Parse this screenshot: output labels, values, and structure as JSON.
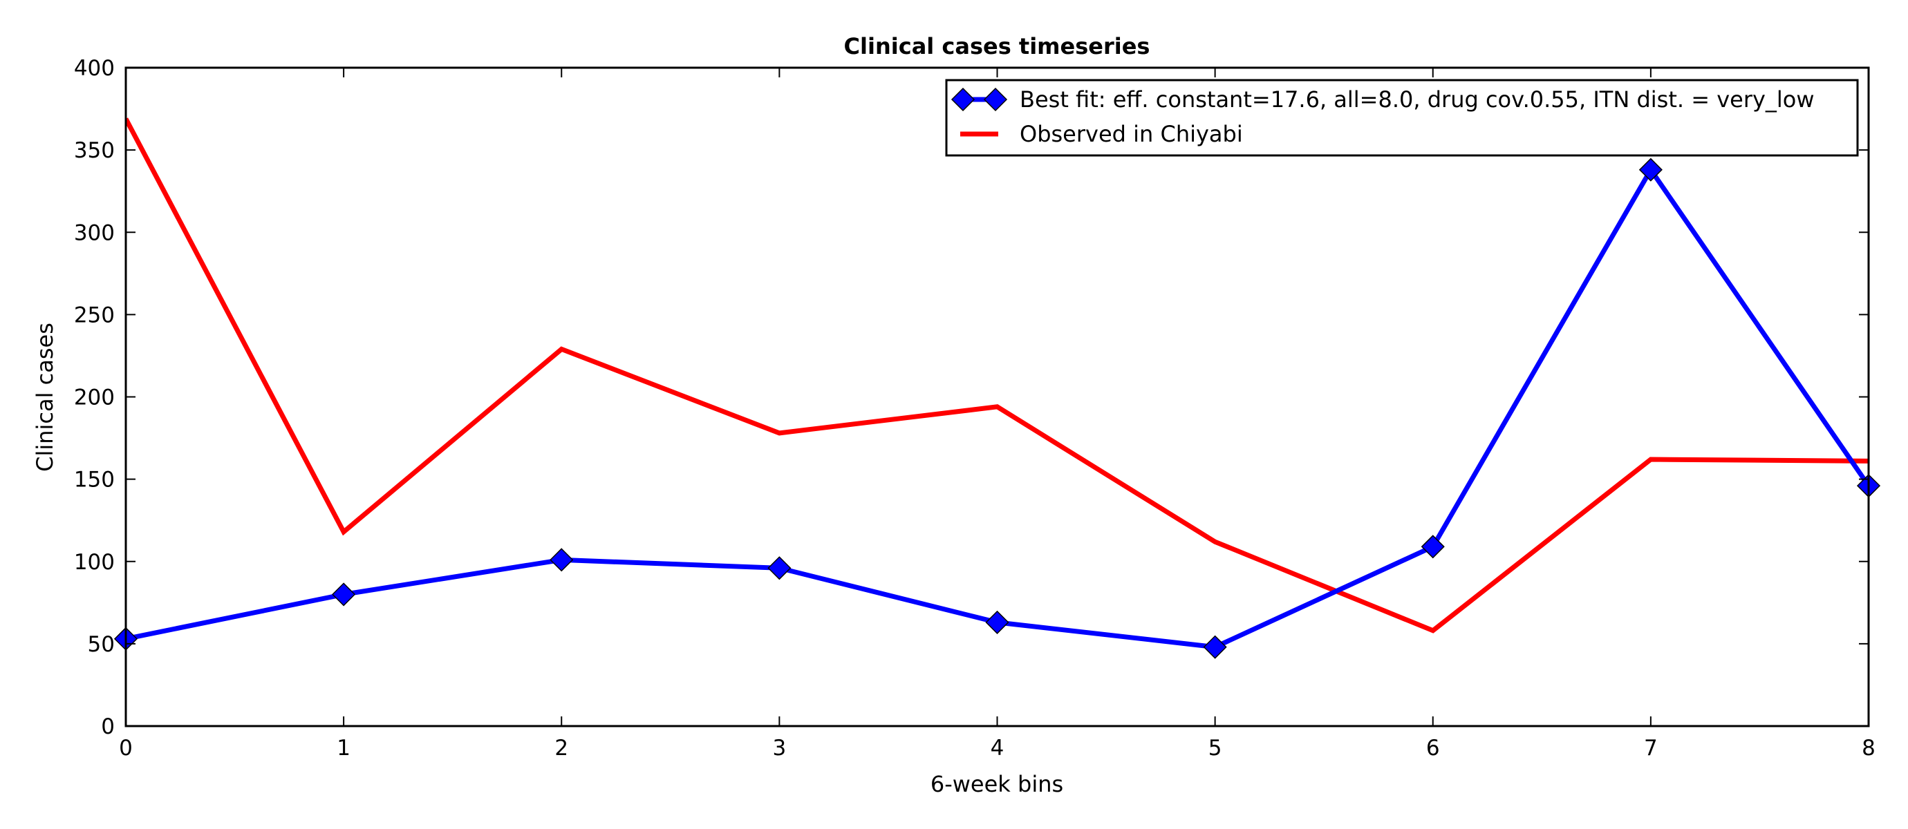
{
  "chart_data": {
    "type": "line",
    "title": "Clinical cases timeseries",
    "xlabel": "6-week bins",
    "ylabel": "Clinical cases",
    "xlim": [
      0,
      8
    ],
    "ylim": [
      0,
      400
    ],
    "x": [
      0,
      1,
      2,
      3,
      4,
      5,
      6,
      7,
      8
    ],
    "xticks": [
      0,
      1,
      2,
      3,
      4,
      5,
      6,
      7,
      8
    ],
    "yticks": [
      0,
      50,
      100,
      150,
      200,
      250,
      300,
      350,
      400
    ],
    "grid": false,
    "legend_position": "top-right",
    "series": [
      {
        "name": "Best fit: eff. constant=17.6, all=8.0, drug cov.0.55, ITN dist. = very_low",
        "color": "#0000ff",
        "marker": "diamond",
        "values": [
          53,
          80,
          101,
          96,
          63,
          48,
          109,
          338,
          146
        ]
      },
      {
        "name": "Observed in Chiyabi",
        "color": "#ff0000",
        "marker": "none",
        "values": [
          369,
          118,
          229,
          178,
          194,
          112,
          58,
          162,
          161
        ]
      }
    ]
  }
}
